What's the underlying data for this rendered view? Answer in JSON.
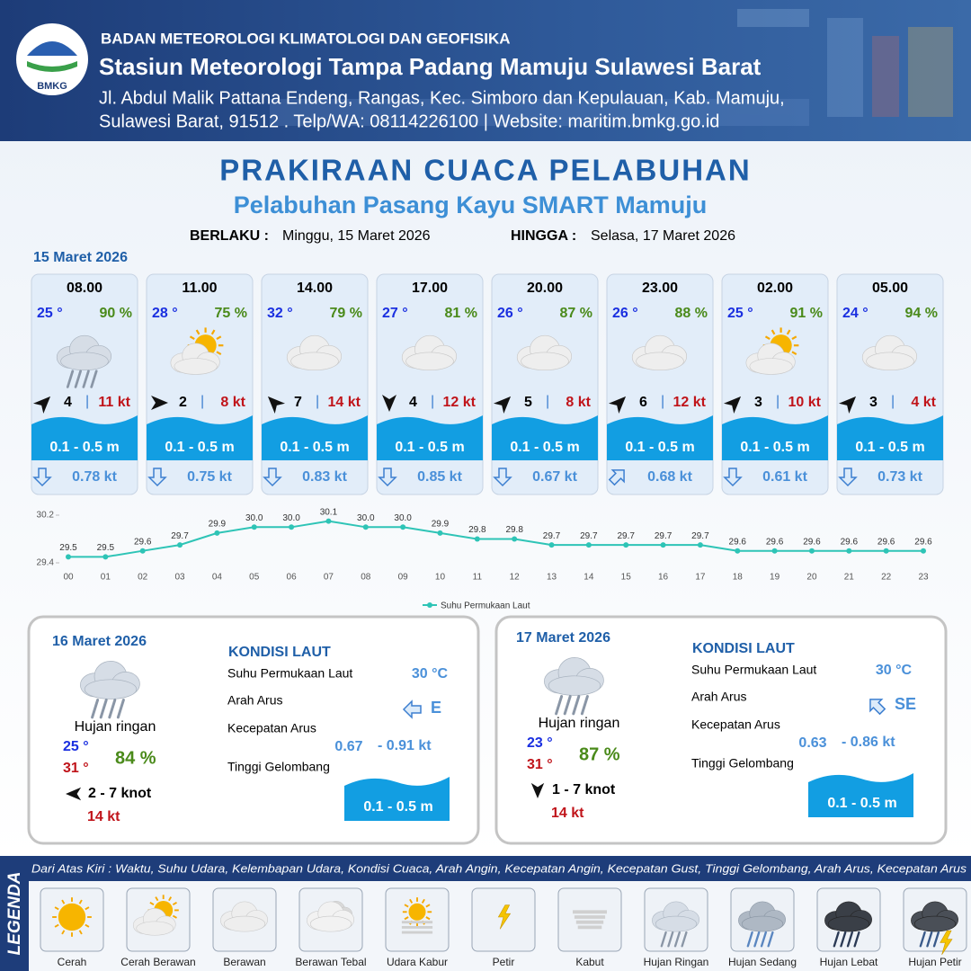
{
  "header": {
    "logo": "BMKG",
    "agency": "BADAN METEOROLOGI KLIMATOLOGI DAN GEOFISIKA",
    "station": "Stasiun Meteorologi Tampa Padang Mamuju Sulawesi Barat",
    "address": [
      "Jl. Abdul Malik Pattana Endeng, Rangas, Kec. Simboro dan Kepulauan, Kab. Mamuju,",
      "Sulawesi Barat, 91512 . Telp/WA: 08114226100 | Website: maritim.bmkg.go.id"
    ]
  },
  "title": "PRAKIRAAN CUACA PELABUHAN",
  "subtitle": "Pelabuhan Pasang Kayu SMART Mamuju",
  "validity": {
    "from_label": "BERLAKU :",
    "from": "Minggu, 15 Maret 2026",
    "to_label": "HINGGA :",
    "to": "Selasa, 17 Maret 2026"
  },
  "day1": {
    "date": "15 Maret 2026",
    "slots": [
      {
        "time": "08.00",
        "temp": "25 °",
        "humidity": "90 %",
        "wind": "4",
        "gust": "11 kt",
        "wave": "0.1 - 0.5 m",
        "current": "0.78 kt"
      },
      {
        "time": "11.00",
        "temp": "28 °",
        "humidity": "75 %",
        "wind": "2",
        "gust": "8 kt",
        "wave": "0.1 - 0.5 m",
        "current": "0.75 kt"
      },
      {
        "time": "14.00",
        "temp": "32 °",
        "humidity": "79 %",
        "wind": "7",
        "gust": "14 kt",
        "wave": "0.1 - 0.5 m",
        "current": "0.83 kt"
      },
      {
        "time": "17.00",
        "temp": "27 °",
        "humidity": "81 %",
        "wind": "4",
        "gust": "12 kt",
        "wave": "0.1 - 0.5 m",
        "current": "0.85 kt"
      },
      {
        "time": "20.00",
        "temp": "26 °",
        "humidity": "87 %",
        "wind": "5",
        "gust": "8 kt",
        "wave": "0.1 - 0.5 m",
        "current": "0.67 kt"
      },
      {
        "time": "23.00",
        "temp": "26 °",
        "humidity": "88 %",
        "wind": "6",
        "gust": "12 kt",
        "wave": "0.1 - 0.5 m",
        "current": "0.68 kt"
      },
      {
        "time": "02.00",
        "temp": "25 °",
        "humidity": "91 %",
        "wind": "3",
        "gust": "10 kt",
        "wave": "0.1 - 0.5 m",
        "current": "0.61 kt"
      },
      {
        "time": "05.00",
        "temp": "24 °",
        "humidity": "94 %",
        "wind": "3",
        "gust": "4 kt",
        "wave": "0.1 - 0.5 m",
        "current": "0.73 kt"
      }
    ]
  },
  "chart_data": {
    "type": "line",
    "categories": [
      "00",
      "01",
      "02",
      "03",
      "04",
      "05",
      "06",
      "07",
      "08",
      "09",
      "10",
      "11",
      "12",
      "13",
      "14",
      "15",
      "16",
      "17",
      "18",
      "19",
      "20",
      "21",
      "22",
      "23"
    ],
    "series": [
      {
        "name": "Suhu Permukaan Laut",
        "color": "#2ec4b6",
        "values": [
          29.5,
          29.5,
          29.6,
          29.7,
          29.9,
          30.0,
          30.0,
          30.1,
          30.0,
          30.0,
          29.9,
          29.8,
          29.8,
          29.7,
          29.7,
          29.7,
          29.7,
          29.7,
          29.6,
          29.6,
          29.6,
          29.6,
          29.6,
          29.6
        ],
        "value_labels": [
          "29.5",
          "29.5",
          "29.6",
          "29.7",
          "29.9",
          "30.0",
          "30.0",
          "30.1",
          "30.0",
          "30.0",
          "29.9",
          "29.8",
          "29.8",
          "29.7",
          "29.7",
          "29.7",
          "29.7",
          "29.7",
          "29.6",
          "29.6",
          "29.6",
          "29.6",
          "29.6",
          "29.6"
        ]
      }
    ],
    "ylim": [
      29.4,
      30.2
    ],
    "yticks": [
      29.4,
      30.2
    ],
    "grid": false,
    "legend": "bottom"
  },
  "days": [
    {
      "date": "16 Maret 2026",
      "condition": "Hujan ringan",
      "temp_min": "25 °",
      "temp_max": "31 °",
      "humidity": "84 %",
      "wind": "2  - 7 knot",
      "gust": "14 kt",
      "sea_title": "KONDISI LAUT",
      "sst_label": "Suhu Permukaan Laut",
      "sst": "30 °C",
      "dir_label": "Arah Arus",
      "dir": "E",
      "speed_label": "Kecepatan Arus",
      "speed_min": "0.67",
      "speed_max": "- 0.91 kt",
      "wave_label": "Tinggi Gelombang",
      "wave": "0.1 - 0.5 m"
    },
    {
      "date": "17 Maret 2026",
      "condition": "Hujan ringan",
      "temp_min": "23 °",
      "temp_max": "31 °",
      "humidity": "87 %",
      "wind": "1 - 7 knot",
      "gust": "14 kt",
      "sea_title": "KONDISI LAUT",
      "sst_label": "Suhu Permukaan Laut",
      "sst": "30 °C",
      "dir_label": "Arah Arus",
      "dir": "SE",
      "speed_label": "Kecepatan Arus",
      "speed_min": "0.63",
      "speed_max": "- 0.86 kt",
      "wave_label": "Tinggi Gelombang",
      "wave": "0.1 - 0.5 m"
    }
  ],
  "legend": {
    "title": "LEGENDA",
    "caption": "Dari Atas Kiri : Waktu, Suhu Udara, Kelembapan Udara, Kondisi Cuaca, Arah Angin, Kecepatan Angin, Kecepatan Gust, Tinggi Gelombang, Arah Arus, Kecepatan Arus",
    "items": [
      "Cerah",
      "Cerah Berawan",
      "Berawan",
      "Berawan Tebal",
      "Udara Kabur",
      "Petir",
      "Kabut",
      "Hujan Ringan",
      "Hujan Sedang",
      "Hujan Lebat",
      "Hujan Petir"
    ]
  }
}
